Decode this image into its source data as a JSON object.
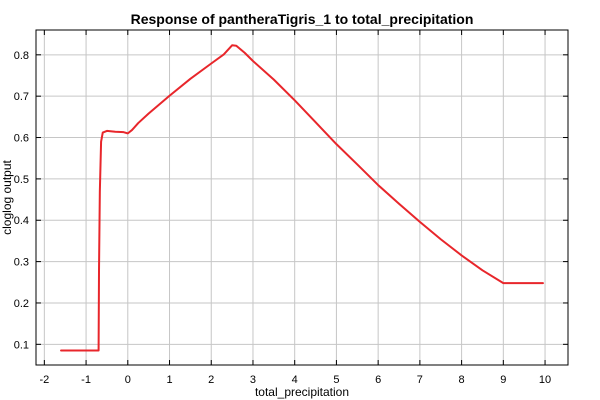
{
  "chart_data": {
    "type": "line",
    "title": "Response of pantheraTigris_1 to total_precipitation",
    "xlabel": "total_precipitation",
    "ylabel": "cloglog output",
    "xlim": [
      -2.2,
      10.55
    ],
    "ylim": [
      0.05,
      0.86
    ],
    "grid": true,
    "xticks": [
      -2,
      -1,
      0,
      1,
      2,
      3,
      4,
      5,
      6,
      7,
      8,
      9,
      10
    ],
    "yticks": [
      0.1,
      0.2,
      0.3,
      0.4,
      0.5,
      0.6,
      0.7,
      0.8
    ],
    "xtick_labels": [
      "-2",
      "-1",
      "0",
      "1",
      "2",
      "3",
      "4",
      "5",
      "6",
      "7",
      "8",
      "9",
      "10"
    ],
    "ytick_labels": [
      "0.1",
      "0.2",
      "0.3",
      "0.4",
      "0.5",
      "0.6",
      "0.7",
      "0.8"
    ],
    "series": [
      {
        "color": "#e8262b",
        "points": [
          [
            -1.6,
            0.085
          ],
          [
            -0.7,
            0.085
          ],
          [
            -0.69,
            0.28
          ],
          [
            -0.67,
            0.47
          ],
          [
            -0.64,
            0.59
          ],
          [
            -0.6,
            0.612
          ],
          [
            -0.5,
            0.616
          ],
          [
            -0.3,
            0.614
          ],
          [
            -0.1,
            0.613
          ],
          [
            0.0,
            0.61
          ],
          [
            0.1,
            0.618
          ],
          [
            0.25,
            0.635
          ],
          [
            0.5,
            0.658
          ],
          [
            1.0,
            0.701
          ],
          [
            1.5,
            0.742
          ],
          [
            2.0,
            0.779
          ],
          [
            2.3,
            0.801
          ],
          [
            2.5,
            0.823
          ],
          [
            2.6,
            0.822
          ],
          [
            2.8,
            0.805
          ],
          [
            3.0,
            0.785
          ],
          [
            3.5,
            0.74
          ],
          [
            4.0,
            0.69
          ],
          [
            4.5,
            0.637
          ],
          [
            5.0,
            0.584
          ],
          [
            5.5,
            0.535
          ],
          [
            6.0,
            0.485
          ],
          [
            6.5,
            0.44
          ],
          [
            7.0,
            0.396
          ],
          [
            7.5,
            0.354
          ],
          [
            8.0,
            0.315
          ],
          [
            8.5,
            0.279
          ],
          [
            9.0,
            0.248
          ],
          [
            9.5,
            0.248
          ],
          [
            9.95,
            0.248
          ]
        ]
      }
    ]
  }
}
